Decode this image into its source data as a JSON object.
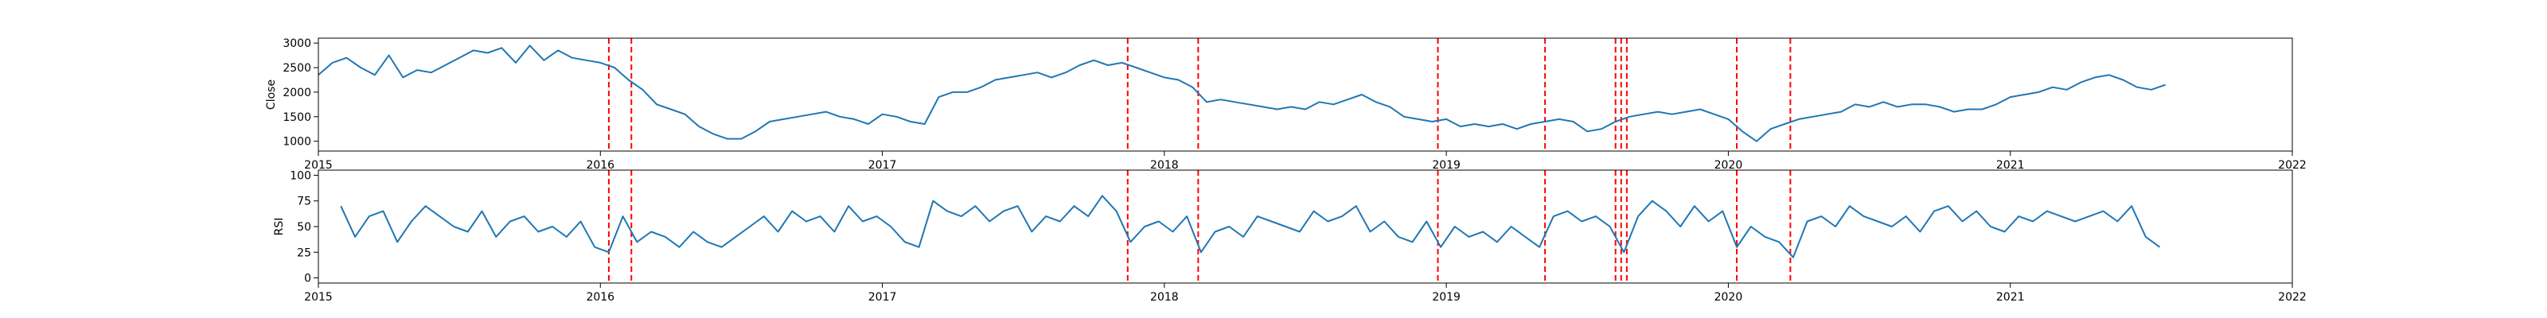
{
  "chart_data": [
    {
      "type": "line",
      "ylabel": "Close",
      "xlabel": "",
      "xlim": [
        2015.0,
        2022.0
      ],
      "ylim": [
        800,
        3100
      ],
      "yticks": [
        1000,
        1500,
        2000,
        2500,
        3000
      ],
      "xticks": [
        2015,
        2016,
        2017,
        2018,
        2019,
        2020,
        2021,
        2022
      ],
      "series": [
        {
          "name": "Close",
          "color": "#1f77b4",
          "x": [
            2015.0,
            2015.05,
            2015.1,
            2015.15,
            2015.2,
            2015.25,
            2015.3,
            2015.35,
            2015.4,
            2015.45,
            2015.5,
            2015.55,
            2015.6,
            2015.65,
            2015.7,
            2015.75,
            2015.8,
            2015.85,
            2015.9,
            2015.95,
            2016.0,
            2016.05,
            2016.1,
            2016.15,
            2016.2,
            2016.25,
            2016.3,
            2016.35,
            2016.4,
            2016.45,
            2016.5,
            2016.55,
            2016.6,
            2016.65,
            2016.7,
            2016.75,
            2016.8,
            2016.85,
            2016.9,
            2016.95,
            2017.0,
            2017.05,
            2017.1,
            2017.15,
            2017.2,
            2017.25,
            2017.3,
            2017.35,
            2017.4,
            2017.45,
            2017.5,
            2017.55,
            2017.6,
            2017.65,
            2017.7,
            2017.75,
            2017.8,
            2017.85,
            2017.9,
            2017.95,
            2018.0,
            2018.05,
            2018.1,
            2018.15,
            2018.2,
            2018.25,
            2018.3,
            2018.35,
            2018.4,
            2018.45,
            2018.5,
            2018.55,
            2018.6,
            2018.65,
            2018.7,
            2018.75,
            2018.8,
            2018.85,
            2018.9,
            2018.95,
            2019.0,
            2019.05,
            2019.1,
            2019.15,
            2019.2,
            2019.25,
            2019.3,
            2019.35,
            2019.4,
            2019.45,
            2019.5,
            2019.55,
            2019.6,
            2019.65,
            2019.7,
            2019.75,
            2019.8,
            2019.85,
            2019.9,
            2019.95,
            2020.0,
            2020.05,
            2020.1,
            2020.15,
            2020.2,
            2020.25,
            2020.3,
            2020.35,
            2020.4,
            2020.45,
            2020.5,
            2020.55,
            2020.6,
            2020.65,
            2020.7,
            2020.75,
            2020.8,
            2020.85,
            2020.9,
            2020.95,
            2021.0,
            2021.05,
            2021.1,
            2021.15,
            2021.2,
            2021.25,
            2021.3,
            2021.35,
            2021.4,
            2021.45,
            2021.5,
            2021.55
          ],
          "values": [
            2350,
            2600,
            2700,
            2500,
            2350,
            2750,
            2300,
            2450,
            2400,
            2550,
            2700,
            2850,
            2800,
            2900,
            2600,
            2950,
            2650,
            2850,
            2700,
            2650,
            2600,
            2500,
            2250,
            2050,
            1750,
            1650,
            1550,
            1300,
            1150,
            1050,
            1050,
            1200,
            1400,
            1450,
            1500,
            1550,
            1600,
            1500,
            1450,
            1350,
            1550,
            1500,
            1400,
            1350,
            1900,
            2000,
            2000,
            2100,
            2250,
            2300,
            2350,
            2400,
            2300,
            2400,
            2550,
            2650,
            2550,
            2600,
            2500,
            2400,
            2300,
            2250,
            2100,
            1800,
            1850,
            1800,
            1750,
            1700,
            1650,
            1700,
            1650,
            1800,
            1750,
            1850,
            1950,
            1800,
            1700,
            1500,
            1450,
            1400,
            1450,
            1300,
            1350,
            1300,
            1350,
            1250,
            1350,
            1400,
            1450,
            1400,
            1200,
            1250,
            1400,
            1500,
            1550,
            1600,
            1550,
            1600,
            1650,
            1550,
            1450,
            1200,
            1000,
            1250,
            1350,
            1450,
            1500,
            1550,
            1600,
            1750,
            1700,
            1800,
            1700,
            1750,
            1750,
            1700,
            1600,
            1650,
            1650,
            1750,
            1900,
            1950,
            2000,
            2100,
            2050,
            2200,
            2300,
            2350,
            2250,
            2100,
            2050,
            2150
          ]
        }
      ],
      "event_lines": [
        2016.03,
        2016.11,
        2017.87,
        2018.12,
        2018.97,
        2019.35,
        2019.6,
        2019.62,
        2019.64,
        2020.03,
        2020.22
      ],
      "event_color": "#ff0000"
    },
    {
      "type": "line",
      "ylabel": "RSI",
      "xlabel": "",
      "xlim": [
        2015.0,
        2022.0
      ],
      "ylim": [
        -5,
        105
      ],
      "yticks": [
        0,
        25,
        50,
        75,
        100
      ],
      "xticks": [
        2015,
        2016,
        2017,
        2018,
        2019,
        2020,
        2021,
        2022
      ],
      "series": [
        {
          "name": "RSI",
          "color": "#1f77b4",
          "x": [
            2015.08,
            2015.13,
            2015.18,
            2015.23,
            2015.28,
            2015.33,
            2015.38,
            2015.43,
            2015.48,
            2015.53,
            2015.58,
            2015.63,
            2015.68,
            2015.73,
            2015.78,
            2015.83,
            2015.88,
            2015.93,
            2015.98,
            2016.03,
            2016.08,
            2016.13,
            2016.18,
            2016.23,
            2016.28,
            2016.33,
            2016.38,
            2016.43,
            2016.48,
            2016.53,
            2016.58,
            2016.63,
            2016.68,
            2016.73,
            2016.78,
            2016.83,
            2016.88,
            2016.93,
            2016.98,
            2017.03,
            2017.08,
            2017.13,
            2017.18,
            2017.23,
            2017.28,
            2017.33,
            2017.38,
            2017.43,
            2017.48,
            2017.53,
            2017.58,
            2017.63,
            2017.68,
            2017.73,
            2017.78,
            2017.83,
            2017.88,
            2017.93,
            2017.98,
            2018.03,
            2018.08,
            2018.13,
            2018.18,
            2018.23,
            2018.28,
            2018.33,
            2018.38,
            2018.43,
            2018.48,
            2018.53,
            2018.58,
            2018.63,
            2018.68,
            2018.73,
            2018.78,
            2018.83,
            2018.88,
            2018.93,
            2018.98,
            2019.03,
            2019.08,
            2019.13,
            2019.18,
            2019.23,
            2019.28,
            2019.33,
            2019.38,
            2019.43,
            2019.48,
            2019.53,
            2019.58,
            2019.63,
            2019.68,
            2019.73,
            2019.78,
            2019.83,
            2019.88,
            2019.93,
            2019.98,
            2020.03,
            2020.08,
            2020.13,
            2020.18,
            2020.23,
            2020.28,
            2020.33,
            2020.38,
            2020.43,
            2020.48,
            2020.53,
            2020.58,
            2020.63,
            2020.68,
            2020.73,
            2020.78,
            2020.83,
            2020.88,
            2020.93,
            2020.98,
            2021.03,
            2021.08,
            2021.13,
            2021.18,
            2021.23,
            2021.28,
            2021.33,
            2021.38,
            2021.43,
            2021.48,
            2021.53
          ],
          "values": [
            70,
            40,
            60,
            65,
            35,
            55,
            70,
            60,
            50,
            45,
            65,
            40,
            55,
            60,
            45,
            50,
            40,
            55,
            30,
            25,
            60,
            35,
            45,
            40,
            30,
            45,
            35,
            30,
            40,
            50,
            60,
            45,
            65,
            55,
            60,
            45,
            70,
            55,
            60,
            50,
            35,
            30,
            75,
            65,
            60,
            70,
            55,
            65,
            70,
            45,
            60,
            55,
            70,
            60,
            80,
            65,
            35,
            50,
            55,
            45,
            60,
            25,
            45,
            50,
            40,
            60,
            55,
            50,
            45,
            65,
            55,
            60,
            70,
            45,
            55,
            40,
            35,
            55,
            30,
            50,
            40,
            45,
            35,
            50,
            40,
            30,
            60,
            65,
            55,
            60,
            50,
            25,
            60,
            75,
            65,
            50,
            70,
            55,
            65,
            30,
            50,
            40,
            35,
            20,
            55,
            60,
            50,
            70,
            60,
            55,
            50,
            60,
            45,
            65,
            70,
            55,
            65,
            50,
            45,
            60,
            55,
            65,
            60,
            55,
            60,
            65,
            55,
            70,
            40,
            30
          ]
        }
      ],
      "event_lines": [
        2016.03,
        2016.11,
        2017.87,
        2018.12,
        2018.97,
        2019.35,
        2019.6,
        2019.62,
        2019.64,
        2020.03,
        2020.22
      ],
      "event_color": "#ff0000"
    }
  ]
}
